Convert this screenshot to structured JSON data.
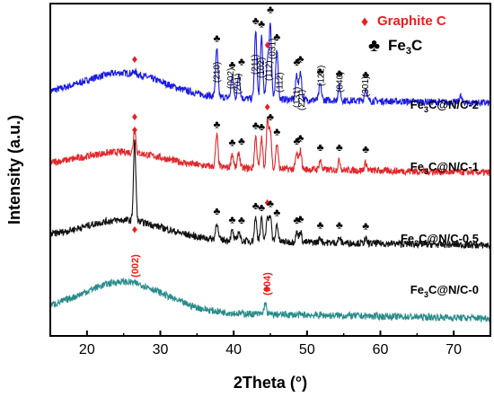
{
  "chart_data": {
    "type": "line",
    "xlabel": "2Theta (°)",
    "ylabel": "Intensity (a.u.)",
    "xlim": [
      15,
      75
    ],
    "xticks": [
      20,
      30,
      40,
      50,
      60,
      70
    ],
    "xtick_labels": [
      "20",
      "30",
      "40",
      "50",
      "60",
      "70"
    ],
    "legend": {
      "placement": "top-right",
      "entries": [
        {
          "symbol": "♦",
          "label": "Graphite C",
          "color": "#ee1c1c"
        },
        {
          "symbol": "♣",
          "label_main": "Fe",
          "label_sub": "3",
          "label_tail": "C",
          "color": "#000000"
        }
      ]
    },
    "series": [
      {
        "key": "s2",
        "name_main": "Fe",
        "name_sub": "3",
        "name_tail": "C@N/C-2",
        "color": "#1a1ae6",
        "offset": 7.4,
        "hump": {
          "center": 25,
          "height": 0.75,
          "width": 5.5
        },
        "peaks": [
          [
            26.5,
            0.08
          ],
          [
            37.7,
            1.5
          ],
          [
            39.8,
            0.7
          ],
          [
            40.7,
            0.8
          ],
          [
            43.0,
            2.1
          ],
          [
            43.8,
            2.0
          ],
          [
            44.6,
            1.2
          ],
          [
            45.0,
            2.4
          ],
          [
            45.9,
            1.6
          ],
          [
            48.6,
            0.8
          ],
          [
            49.1,
            0.9
          ],
          [
            51.8,
            0.5
          ],
          [
            54.4,
            0.45
          ],
          [
            58.0,
            0.4
          ],
          [
            70.9,
            0.2
          ]
        ]
      },
      {
        "key": "s1",
        "name_main": "Fe",
        "name_sub": "3",
        "name_tail": "C@N/C-1",
        "color": "#e3262a",
        "offset": 5.2,
        "hump": {
          "center": 25,
          "height": 0.45,
          "width": 5.5
        },
        "peaks": [
          [
            26.5,
            0.75
          ],
          [
            37.7,
            1.0
          ],
          [
            39.8,
            0.45
          ],
          [
            40.7,
            0.5
          ],
          [
            43.0,
            1.0
          ],
          [
            43.8,
            0.95
          ],
          [
            44.6,
            1.5
          ],
          [
            45.0,
            1.2
          ],
          [
            45.9,
            0.8
          ],
          [
            48.6,
            0.5
          ],
          [
            49.1,
            0.6
          ],
          [
            51.8,
            0.3
          ],
          [
            54.4,
            0.3
          ],
          [
            58.0,
            0.25
          ]
        ]
      },
      {
        "key": "s05",
        "name_main": "Fe",
        "name_sub": "3",
        "name_tail": "C@N/C-0.5",
        "color": "#111111",
        "offset": 2.9,
        "hump": {
          "center": 25,
          "height": 0.6,
          "width": 5.5
        },
        "peaks": [
          [
            26.5,
            2.5
          ],
          [
            37.7,
            0.55
          ],
          [
            39.8,
            0.3
          ],
          [
            40.7,
            0.3
          ],
          [
            43.0,
            0.75
          ],
          [
            43.8,
            0.7
          ],
          [
            44.6,
            0.8
          ],
          [
            45.0,
            0.8
          ],
          [
            45.9,
            0.55
          ],
          [
            48.6,
            0.3
          ],
          [
            49.1,
            0.35
          ],
          [
            51.8,
            0.15
          ],
          [
            54.4,
            0.15
          ],
          [
            58.0,
            0.12
          ]
        ]
      },
      {
        "key": "s0",
        "name_main": "Fe",
        "name_sub": "3",
        "name_tail": "C@N/C-0",
        "color": "#2a8b8b",
        "offset": 0.6,
        "hump": {
          "center": 25,
          "height": 0.95,
          "width": 5.5
        },
        "peaks": [
          [
            44.3,
            0.35
          ]
        ]
      }
    ],
    "annotations": {
      "hkl": [
        {
          "label": "(210)",
          "x": 37.7
        },
        {
          "label": "(002)",
          "x": 39.6
        },
        {
          "label": "(201)",
          "x": 40.6
        },
        {
          "label": "(211)",
          "x": 42.9
        },
        {
          "label": "(102)",
          "x": 43.8
        },
        {
          "label": "(112)",
          "x": 44.8
        },
        {
          "label": "(031)",
          "x": 45.3
        },
        {
          "label": "(112)",
          "x": 46.3
        },
        {
          "label": "(131)",
          "x": 48.6
        },
        {
          "label": "(221)",
          "x": 49.3
        },
        {
          "label": "(122)",
          "x": 51.9
        },
        {
          "label": "(040)",
          "x": 54.5
        },
        {
          "label": "(301)",
          "x": 58.0
        }
      ],
      "graphite_labels": [
        {
          "label": "(002)",
          "x": 26.5,
          "series": "s05"
        },
        {
          "label": "(004)",
          "x": 44.5,
          "series": "s0"
        }
      ]
    }
  }
}
